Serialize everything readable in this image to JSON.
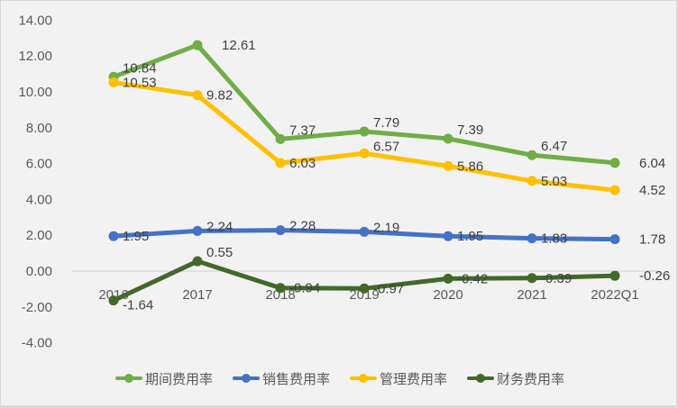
{
  "chart_data": {
    "type": "line",
    "title": "",
    "xlabel": "",
    "ylabel": "",
    "categories": [
      "2016",
      "2017",
      "2018",
      "2019",
      "2020",
      "2021",
      "2022Q1"
    ],
    "ylim": [
      -4,
      14
    ],
    "yticks": [
      "14.00",
      "12.00",
      "10.00",
      "8.00",
      "6.00",
      "4.00",
      "2.00",
      "0.00",
      "-2.00",
      "-4.00"
    ],
    "grid": false,
    "legend_position": "bottom",
    "series": [
      {
        "name": "期间费用率",
        "color": "#70ad47",
        "values": [
          10.84,
          12.61,
          7.37,
          7.79,
          7.39,
          6.47,
          6.04
        ],
        "labels": [
          "10.84",
          "12.61",
          "7.37",
          "7.79",
          "7.39",
          "6.47",
          "6.04"
        ]
      },
      {
        "name": "销售费用率",
        "color": "#4472c4",
        "values": [
          1.95,
          2.24,
          2.28,
          2.19,
          1.95,
          1.83,
          1.78
        ],
        "labels": [
          "1.95",
          "2.24",
          "2.28",
          "2.19",
          "1.95",
          "1.83",
          "1.78"
        ]
      },
      {
        "name": "管理费用率",
        "color": "#ffc000",
        "values": [
          10.53,
          9.82,
          6.03,
          6.57,
          5.86,
          5.03,
          4.52
        ],
        "labels": [
          "10.53",
          "9.82",
          "6.03",
          "6.57",
          "5.86",
          "5.03",
          "4.52"
        ]
      },
      {
        "name": "财务费用率",
        "color": "#43682b",
        "values": [
          -1.64,
          0.55,
          -0.94,
          -0.97,
          -0.42,
          -0.39,
          -0.26
        ],
        "labels": [
          "-1.64",
          "0.55",
          "-0.94",
          "-0.97",
          "-0.42",
          "-0.39",
          "-0.26"
        ]
      }
    ]
  }
}
